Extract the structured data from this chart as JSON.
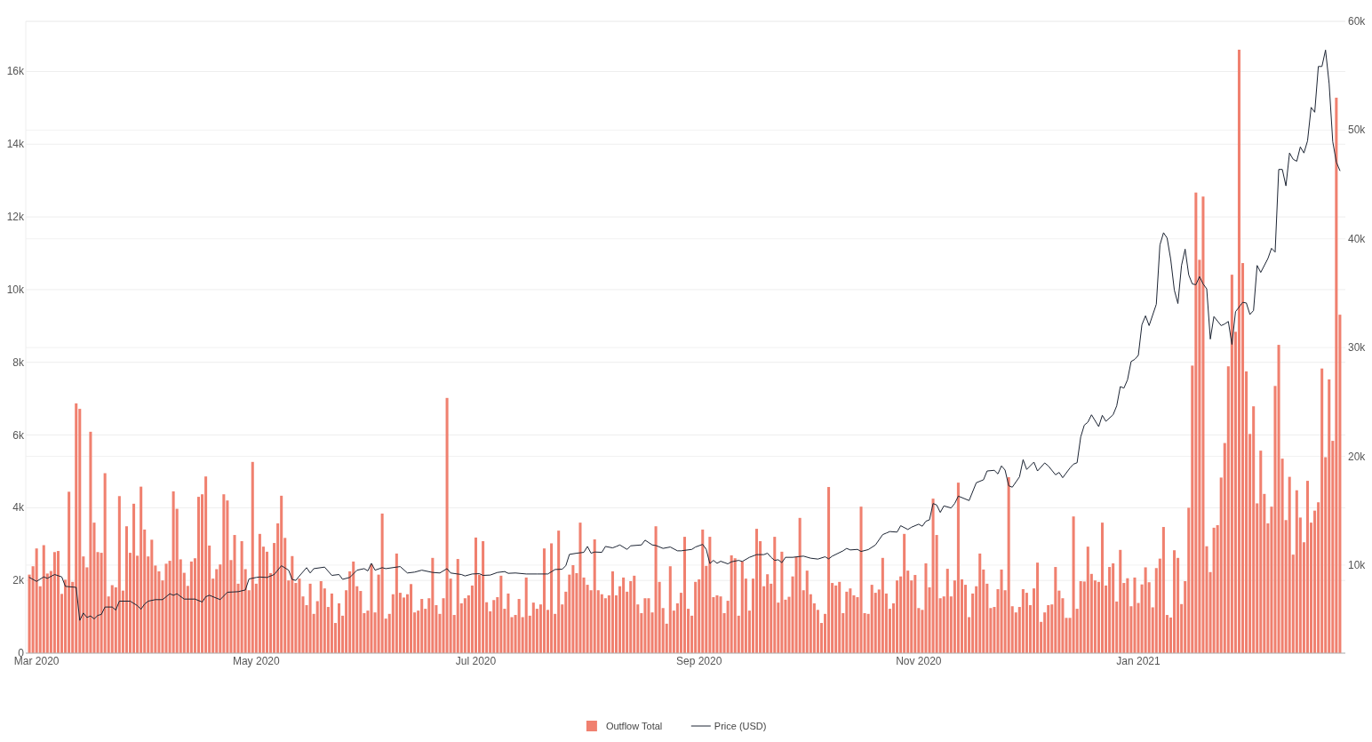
{
  "chart_data": {
    "type": "bar",
    "xlim": [
      "2020-02-27",
      "2021-02-27T12:00"
    ],
    "xticks": [
      {
        "value": "2020-03-01",
        "label": "Mar 2020"
      },
      {
        "value": "2020-05-01",
        "label": "May 2020"
      },
      {
        "value": "2020-07-01",
        "label": "Jul 2020"
      },
      {
        "value": "2020-09-01",
        "label": "Sep 2020"
      },
      {
        "value": "2020-11-01",
        "label": "Nov 2020"
      },
      {
        "value": "2021-01-01",
        "label": "Jan 2021"
      }
    ],
    "ylim": [
      0,
      17380
    ],
    "yticks": [
      0,
      {
        "value": 2000,
        "label": "2k"
      },
      {
        "value": 4000,
        "label": "4k"
      },
      {
        "value": 6000,
        "label": "6k"
      },
      {
        "value": 8000,
        "label": "8k"
      },
      {
        "value": 10000,
        "label": "10k"
      },
      {
        "value": 12000,
        "label": "12k"
      },
      {
        "value": 14000,
        "label": "14k"
      },
      {
        "value": 16000,
        "label": "16k"
      }
    ],
    "y2lim": [
      1900,
      60000
    ],
    "y2ticks": [
      {
        "value": 10000,
        "label": "10k"
      },
      {
        "value": 20000,
        "label": "20k"
      },
      {
        "value": 30000,
        "label": "30k"
      },
      {
        "value": 40000,
        "label": "40k"
      },
      {
        "value": 50000,
        "label": "50k"
      },
      {
        "value": 60000,
        "label": "60k"
      }
    ],
    "grid": "y",
    "legend": "bottom",
    "x": [
      "2020-02-28",
      "2020-02-29",
      "2020-03-01",
      "2020-03-02",
      "2020-03-03",
      "2020-03-04",
      "2020-03-05",
      "2020-03-06",
      "2020-03-07",
      "2020-03-08",
      "2020-03-09",
      "2020-03-10",
      "2020-03-11",
      "2020-03-12",
      "2020-03-13",
      "2020-03-14",
      "2020-03-15",
      "2020-03-16",
      "2020-03-17",
      "2020-03-18",
      "2020-03-19",
      "2020-03-20",
      "2020-03-21",
      "2020-03-22",
      "2020-03-23",
      "2020-03-24",
      "2020-03-25",
      "2020-03-26",
      "2020-03-27",
      "2020-03-28",
      "2020-03-29",
      "2020-03-30",
      "2020-03-31",
      "2020-04-01",
      "2020-04-02",
      "2020-04-03",
      "2020-04-04",
      "2020-04-05",
      "2020-04-06",
      "2020-04-07",
      "2020-04-08",
      "2020-04-09",
      "2020-04-10",
      "2020-04-11",
      "2020-04-12",
      "2020-04-13",
      "2020-04-14",
      "2020-04-15",
      "2020-04-16",
      "2020-04-17",
      "2020-04-18",
      "2020-04-19",
      "2020-04-20",
      "2020-04-21",
      "2020-04-22",
      "2020-04-23",
      "2020-04-24",
      "2020-04-25",
      "2020-04-26",
      "2020-04-27",
      "2020-04-28",
      "2020-04-29",
      "2020-04-30",
      "2020-05-01",
      "2020-05-02",
      "2020-05-03",
      "2020-05-04",
      "2020-05-05",
      "2020-05-06",
      "2020-05-07",
      "2020-05-08",
      "2020-05-09",
      "2020-05-10",
      "2020-05-11",
      "2020-05-12",
      "2020-05-13",
      "2020-05-14",
      "2020-05-15",
      "2020-05-16",
      "2020-05-17",
      "2020-05-18",
      "2020-05-19",
      "2020-05-20",
      "2020-05-21",
      "2020-05-22",
      "2020-05-23",
      "2020-05-24",
      "2020-05-25",
      "2020-05-26",
      "2020-05-27",
      "2020-05-28",
      "2020-05-29",
      "2020-05-30",
      "2020-05-31",
      "2020-06-01",
      "2020-06-02",
      "2020-06-03",
      "2020-06-04",
      "2020-06-05",
      "2020-06-06",
      "2020-06-07",
      "2020-06-08",
      "2020-06-09",
      "2020-06-10",
      "2020-06-11",
      "2020-06-12",
      "2020-06-13",
      "2020-06-14",
      "2020-06-15",
      "2020-06-16",
      "2020-06-17",
      "2020-06-18",
      "2020-06-19",
      "2020-06-20",
      "2020-06-21",
      "2020-06-22",
      "2020-06-23",
      "2020-06-24",
      "2020-06-25",
      "2020-06-26",
      "2020-06-27",
      "2020-06-28",
      "2020-06-29",
      "2020-06-30",
      "2020-07-01",
      "2020-07-02",
      "2020-07-03",
      "2020-07-04",
      "2020-07-05",
      "2020-07-06",
      "2020-07-07",
      "2020-07-08",
      "2020-07-09",
      "2020-07-10",
      "2020-07-11",
      "2020-07-12",
      "2020-07-13",
      "2020-07-14",
      "2020-07-15",
      "2020-07-16",
      "2020-07-17",
      "2020-07-18",
      "2020-07-19",
      "2020-07-20",
      "2020-07-21",
      "2020-07-22",
      "2020-07-23",
      "2020-07-24",
      "2020-07-25",
      "2020-07-26",
      "2020-07-27",
      "2020-07-28",
      "2020-07-29",
      "2020-07-30",
      "2020-07-31",
      "2020-08-01",
      "2020-08-02",
      "2020-08-03",
      "2020-08-04",
      "2020-08-05",
      "2020-08-06",
      "2020-08-07",
      "2020-08-08",
      "2020-08-09",
      "2020-08-10",
      "2020-08-11",
      "2020-08-12",
      "2020-08-13",
      "2020-08-14",
      "2020-08-15",
      "2020-08-16",
      "2020-08-17",
      "2020-08-18",
      "2020-08-19",
      "2020-08-20",
      "2020-08-21",
      "2020-08-22",
      "2020-08-23",
      "2020-08-24",
      "2020-08-25",
      "2020-08-26",
      "2020-08-27",
      "2020-08-28",
      "2020-08-29",
      "2020-08-30",
      "2020-08-31",
      "2020-09-01",
      "2020-09-02",
      "2020-09-03",
      "2020-09-04",
      "2020-09-05",
      "2020-09-06",
      "2020-09-07",
      "2020-09-08",
      "2020-09-09",
      "2020-09-10",
      "2020-09-11",
      "2020-09-12",
      "2020-09-13",
      "2020-09-14",
      "2020-09-15",
      "2020-09-16",
      "2020-09-17",
      "2020-09-18",
      "2020-09-19",
      "2020-09-20",
      "2020-09-21",
      "2020-09-22",
      "2020-09-23",
      "2020-09-24",
      "2020-09-25",
      "2020-09-26",
      "2020-09-27",
      "2020-09-28",
      "2020-09-29",
      "2020-09-30",
      "2020-10-01",
      "2020-10-02",
      "2020-10-03",
      "2020-10-04",
      "2020-10-05",
      "2020-10-06",
      "2020-10-07",
      "2020-10-08",
      "2020-10-09",
      "2020-10-10",
      "2020-10-11",
      "2020-10-12",
      "2020-10-13",
      "2020-10-14",
      "2020-10-15",
      "2020-10-16",
      "2020-10-17",
      "2020-10-18",
      "2020-10-19",
      "2020-10-20",
      "2020-10-21",
      "2020-10-22",
      "2020-10-23",
      "2020-10-24",
      "2020-10-25",
      "2020-10-26",
      "2020-10-27",
      "2020-10-28",
      "2020-10-29",
      "2020-10-30",
      "2020-10-31",
      "2020-11-01",
      "2020-11-02",
      "2020-11-03",
      "2020-11-04",
      "2020-11-05",
      "2020-11-06",
      "2020-11-07",
      "2020-11-08",
      "2020-11-09",
      "2020-11-10",
      "2020-11-11",
      "2020-11-12",
      "2020-11-13",
      "2020-11-14",
      "2020-11-15",
      "2020-11-16",
      "2020-11-17",
      "2020-11-18",
      "2020-11-19",
      "2020-11-20",
      "2020-11-21",
      "2020-11-22",
      "2020-11-23",
      "2020-11-24",
      "2020-11-25",
      "2020-11-26",
      "2020-11-27",
      "2020-11-28",
      "2020-11-29",
      "2020-11-30",
      "2020-12-01",
      "2020-12-02",
      "2020-12-03",
      "2020-12-04",
      "2020-12-05",
      "2020-12-06",
      "2020-12-07",
      "2020-12-08",
      "2020-12-09",
      "2020-12-10",
      "2020-12-11",
      "2020-12-12",
      "2020-12-13",
      "2020-12-14",
      "2020-12-15",
      "2020-12-16",
      "2020-12-17",
      "2020-12-18",
      "2020-12-19",
      "2020-12-20",
      "2020-12-21",
      "2020-12-22",
      "2020-12-23",
      "2020-12-24",
      "2020-12-25",
      "2020-12-26",
      "2020-12-27",
      "2020-12-28",
      "2020-12-29",
      "2020-12-30",
      "2020-12-31",
      "2021-01-01",
      "2021-01-02",
      "2021-01-03",
      "2021-01-04",
      "2021-01-05",
      "2021-01-06",
      "2021-01-07",
      "2021-01-08",
      "2021-01-09",
      "2021-01-10",
      "2021-01-11",
      "2021-01-12",
      "2021-01-13",
      "2021-01-14",
      "2021-01-15",
      "2021-01-16",
      "2021-01-17",
      "2021-01-18",
      "2021-01-19",
      "2021-01-20",
      "2021-01-21",
      "2021-01-22",
      "2021-01-23",
      "2021-01-24",
      "2021-01-25",
      "2021-01-26",
      "2021-01-27",
      "2021-01-28",
      "2021-01-29",
      "2021-01-30",
      "2021-01-31",
      "2021-02-01",
      "2021-02-02",
      "2021-02-03",
      "2021-02-04",
      "2021-02-05",
      "2021-02-06",
      "2021-02-07",
      "2021-02-08",
      "2021-02-09",
      "2021-02-10",
      "2021-02-11",
      "2021-02-12",
      "2021-02-13",
      "2021-02-14",
      "2021-02-15",
      "2021-02-16",
      "2021-02-17",
      "2021-02-18",
      "2021-02-19",
      "2021-02-20",
      "2021-02-21",
      "2021-02-22",
      "2021-02-23",
      "2021-02-24",
      "2021-02-25",
      "2021-02-26"
    ],
    "series": [
      {
        "name": "Outflow Total",
        "color": "#f0806f",
        "values": [
          2160,
          2390,
          2880,
          1840,
          2970,
          2190,
          2260,
          2780,
          2810,
          1630,
          2020,
          4440,
          1960,
          6870,
          6720,
          2660,
          2360,
          6090,
          3590,
          2780,
          2760,
          4950,
          1560,
          1870,
          1810,
          4320,
          1720,
          3490,
          2760,
          4110,
          2680,
          4580,
          3400,
          2660,
          3120,
          2410,
          2250,
          2000,
          2460,
          2540,
          4450,
          3970,
          2580,
          2210,
          1850,
          2520,
          2610,
          4300,
          4370,
          4860,
          2960,
          2050,
          2310,
          2440,
          4370,
          4200,
          2560,
          3250,
          1910,
          3080,
          2310,
          1730,
          5260,
          1910,
          3280,
          2930,
          2790,
          2200,
          3030,
          3570,
          4330,
          3170,
          2000,
          2670,
          1930,
          2050,
          1560,
          1320,
          1910,
          1080,
          1430,
          1980,
          1780,
          1270,
          1640,
          830,
          1370,
          1030,
          1730,
          2250,
          2520,
          1840,
          1710,
          1100,
          1170,
          2440,
          1120,
          2160,
          3840,
          950,
          1080,
          1620,
          2740,
          1660,
          1530,
          1620,
          1900,
          1120,
          1170,
          1490,
          1220,
          1510,
          2620,
          1320,
          1080,
          1510,
          7020,
          2050,
          1050,
          2590,
          1370,
          1510,
          1590,
          1860,
          3180,
          2160,
          3080,
          1400,
          1150,
          1460,
          1540,
          2130,
          1220,
          1640,
          990,
          1050,
          1490,
          990,
          2080,
          1030,
          1390,
          1220,
          1340,
          2880,
          1190,
          3020,
          1080,
          3370,
          1340,
          1690,
          2160,
          2420,
          2200,
          3590,
          2080,
          1880,
          1730,
          3130,
          1730,
          1620,
          1510,
          1590,
          2250,
          1590,
          1840,
          2080,
          1690,
          1980,
          2130,
          1340,
          1100,
          1510,
          1510,
          1120,
          3490,
          1960,
          1240,
          810,
          2390,
          1170,
          1370,
          1660,
          3200,
          1220,
          1030,
          1960,
          2030,
          3400,
          2400,
          3200,
          1540,
          1590,
          1560,
          1100,
          1440,
          2690,
          2610,
          1030,
          2520,
          2050,
          1170,
          2050,
          3420,
          3080,
          1840,
          2170,
          1910,
          3200,
          1390,
          2790,
          1470,
          1550,
          2110,
          2650,
          3720,
          1730,
          2270,
          1620,
          1370,
          1190,
          830,
          1080,
          4570,
          1930,
          1860,
          1960,
          1100,
          1690,
          1780,
          1590,
          1540,
          4030,
          1100,
          1080,
          1880,
          1660,
          1750,
          2620,
          1640,
          1220,
          1370,
          2000,
          2110,
          3280,
          2270,
          2000,
          2150,
          1240,
          1190,
          2470,
          1810,
          4250,
          3250,
          1510,
          1560,
          2320,
          1560,
          2000,
          4690,
          2030,
          1880,
          990,
          1640,
          1840,
          2740,
          2300,
          1910,
          1240,
          1270,
          1760,
          2300,
          1730,
          4840,
          1290,
          1120,
          1270,
          1760,
          1660,
          1320,
          1780,
          2490,
          860,
          1120,
          1320,
          1340,
          2370,
          1720,
          1510,
          970,
          970,
          3760,
          1220,
          1980,
          1970,
          2930,
          2180,
          2000,
          1960,
          3590,
          1860,
          2370,
          2470,
          1420,
          2840,
          1930,
          2060,
          1290,
          2080,
          1380,
          1890,
          2360,
          1950,
          1260,
          2340,
          2600,
          3470,
          1050,
          980,
          2830,
          2620,
          1350,
          1980,
          4000,
          7910,
          12670,
          10820,
          12560,
          2940,
          2230,
          3450,
          3520,
          4830,
          5780,
          7890,
          10410,
          8840,
          16600,
          10730,
          7750,
          6030,
          6790,
          4120,
          5570,
          4380,
          3570,
          4030,
          7350,
          8480,
          5350,
          3660,
          4850,
          2710,
          4480,
          3730,
          3050,
          4740,
          3590,
          3920,
          4150,
          7830,
          5390,
          7530,
          5840,
          15280,
          9310
        ]
      },
      {
        "name": "Price (USD)",
        "type": "line",
        "axis": "y2",
        "color": "#1c2433",
        "x": [
          "2020-02-28",
          "2020-03-01",
          "2020-03-03",
          "2020-03-04",
          "2020-03-06",
          "2020-03-08",
          "2020-03-09",
          "2020-03-12",
          "2020-03-13",
          "2020-03-14",
          "2020-03-15",
          "2020-03-16",
          "2020-03-17",
          "2020-03-18",
          "2020-03-19",
          "2020-03-20",
          "2020-03-22",
          "2020-03-23",
          "2020-03-24",
          "2020-03-27",
          "2020-03-29",
          "2020-03-30",
          "2020-03-31",
          "2020-04-01",
          "2020-04-03",
          "2020-04-05",
          "2020-04-07",
          "2020-04-08",
          "2020-04-09",
          "2020-04-11",
          "2020-04-14",
          "2020-04-16",
          "2020-04-17",
          "2020-04-18",
          "2020-04-21",
          "2020-04-23",
          "2020-04-26",
          "2020-04-28",
          "2020-04-29",
          "2020-05-01",
          "2020-05-02",
          "2020-05-04",
          "2020-05-06",
          "2020-05-08",
          "2020-05-10",
          "2020-05-11",
          "2020-05-12",
          "2020-05-13",
          "2020-05-15",
          "2020-05-16",
          "2020-05-17",
          "2020-05-20",
          "2020-05-22",
          "2020-05-24",
          "2020-05-25",
          "2020-05-27",
          "2020-05-29",
          "2020-05-31",
          "2020-06-01",
          "2020-06-02",
          "2020-06-03",
          "2020-06-05",
          "2020-06-06",
          "2020-06-10",
          "2020-06-12",
          "2020-06-14",
          "2020-06-16",
          "2020-06-19",
          "2020-06-21",
          "2020-06-23",
          "2020-06-24",
          "2020-06-27",
          "2020-06-28",
          "2020-06-30",
          "2020-07-02",
          "2020-07-03",
          "2020-07-05",
          "2020-07-07",
          "2020-07-09",
          "2020-07-10",
          "2020-07-12",
          "2020-07-15",
          "2020-07-18",
          "2020-07-21",
          "2020-07-23",
          "2020-07-25",
          "2020-07-26",
          "2020-07-27",
          "2020-07-29",
          "2020-07-31",
          "2020-08-01",
          "2020-08-02",
          "2020-08-03",
          "2020-08-05",
          "2020-08-06",
          "2020-08-08",
          "2020-08-09",
          "2020-08-10",
          "2020-08-12",
          "2020-08-13",
          "2020-08-16",
          "2020-08-17",
          "2020-08-19",
          "2020-08-20",
          "2020-08-22",
          "2020-08-24",
          "2020-08-26",
          "2020-08-27",
          "2020-08-30",
          "2020-08-31",
          "2020-09-02",
          "2020-09-03",
          "2020-09-04",
          "2020-09-05",
          "2020-09-06",
          "2020-09-07",
          "2020-09-09",
          "2020-09-10",
          "2020-09-12",
          "2020-09-13",
          "2020-09-15",
          "2020-09-17",
          "2020-09-19",
          "2020-09-20",
          "2020-09-21",
          "2020-09-22",
          "2020-09-23",
          "2020-09-24",
          "2020-09-25",
          "2020-09-27",
          "2020-09-29",
          "2020-09-30",
          "2020-10-02",
          "2020-10-04",
          "2020-10-06",
          "2020-10-07",
          "2020-10-08",
          "2020-10-11",
          "2020-10-12",
          "2020-10-13",
          "2020-10-15",
          "2020-10-16",
          "2020-10-18",
          "2020-10-20",
          "2020-10-22",
          "2020-10-23",
          "2020-10-24",
          "2020-10-26",
          "2020-10-27",
          "2020-10-29",
          "2020-10-30",
          "2020-11-01",
          "2020-11-02",
          "2020-11-03",
          "2020-11-04",
          "2020-11-05",
          "2020-11-06",
          "2020-11-07",
          "2020-11-08",
          "2020-11-10",
          "2020-11-11",
          "2020-11-12",
          "2020-11-15",
          "2020-11-17",
          "2020-11-19",
          "2020-11-20",
          "2020-11-22",
          "2020-11-23",
          "2020-11-24",
          "2020-11-25",
          "2020-11-26",
          "2020-11-27",
          "2020-11-29",
          "2020-11-30",
          "2020-12-01",
          "2020-12-03",
          "2020-12-04",
          "2020-12-06",
          "2020-12-07",
          "2020-12-09",
          "2020-12-10",
          "2020-12-11",
          "2020-12-13",
          "2020-12-14",
          "2020-12-15",
          "2020-12-16",
          "2020-12-17",
          "2020-12-18",
          "2020-12-19",
          "2020-12-21",
          "2020-12-22",
          "2020-12-23",
          "2020-12-25",
          "2020-12-26",
          "2020-12-27",
          "2020-12-28",
          "2020-12-29",
          "2020-12-30",
          "2020-12-31",
          "2021-01-01",
          "2021-01-02",
          "2021-01-03",
          "2021-01-04",
          "2021-01-06",
          "2021-01-07",
          "2021-01-08",
          "2021-01-09",
          "2021-01-10",
          "2021-01-11",
          "2021-01-12",
          "2021-01-13",
          "2021-01-14",
          "2021-01-15",
          "2021-01-16",
          "2021-01-17",
          "2021-01-18",
          "2021-01-19",
          "2021-01-20",
          "2021-01-21",
          "2021-01-22",
          "2021-01-24",
          "2021-01-25",
          "2021-01-26",
          "2021-01-27",
          "2021-01-28",
          "2021-01-30",
          "2021-01-31",
          "2021-02-01",
          "2021-02-02",
          "2021-02-03",
          "2021-02-04",
          "2021-02-06",
          "2021-02-07",
          "2021-02-08",
          "2021-02-09",
          "2021-02-10",
          "2021-02-11",
          "2021-02-12",
          "2021-02-13",
          "2021-02-14",
          "2021-02-15",
          "2021-02-16",
          "2021-02-17",
          "2021-02-18",
          "2021-02-19",
          "2021-02-20",
          "2021-02-21",
          "2021-02-22",
          "2021-02-23",
          "2021-02-24",
          "2021-02-25",
          "2021-02-26"
        ],
        "values": [
          8860,
          8500,
          8910,
          8780,
          9130,
          8910,
          8040,
          7950,
          4910,
          5590,
          5180,
          5320,
          5050,
          5370,
          5460,
          6140,
          6140,
          5860,
          6680,
          6680,
          6270,
          5940,
          6410,
          6680,
          6820,
          6820,
          7360,
          7220,
          7360,
          6870,
          6870,
          6600,
          7090,
          7220,
          6820,
          7500,
          7550,
          7710,
          8720,
          8860,
          8900,
          8860,
          9130,
          9940,
          9530,
          8670,
          8590,
          9000,
          9760,
          9270,
          9670,
          9810,
          9050,
          9130,
          8690,
          8860,
          9530,
          9670,
          9460,
          10160,
          9530,
          9760,
          9670,
          9860,
          9270,
          9350,
          9530,
          9320,
          9270,
          9670,
          9270,
          9130,
          9000,
          9180,
          9210,
          9050,
          9080,
          9320,
          9400,
          9240,
          9270,
          9180,
          9180,
          9180,
          9590,
          9620,
          9940,
          10980,
          11090,
          11170,
          11710,
          11090,
          11200,
          11170,
          11710,
          11580,
          11710,
          11850,
          11440,
          11770,
          11850,
          12290,
          11850,
          11800,
          11530,
          11660,
          11310,
          11310,
          11440,
          11660,
          11900,
          11440,
          10140,
          10430,
          10160,
          10350,
          10110,
          10300,
          10430,
          10330,
          10710,
          10960,
          10960,
          11090,
          10710,
          10430,
          10490,
          10220,
          10710,
          10710,
          10790,
          10820,
          10630,
          10550,
          10760,
          10570,
          10820,
          11310,
          11530,
          11390,
          11440,
          11250,
          11420,
          11850,
          12800,
          12940,
          13080,
          13030,
          13620,
          13270,
          13480,
          13760,
          13570,
          14030,
          14160,
          15660,
          15520,
          14840,
          15440,
          15250,
          15660,
          16340,
          15930,
          17570,
          17840,
          18650,
          18710,
          18380,
          19120,
          18730,
          17290,
          17160,
          18110,
          19690,
          18790,
          19470,
          18650,
          19390,
          19120,
          18300,
          18520,
          18030,
          18920,
          19280,
          19410,
          21780,
          22870,
          23140,
          23820,
          22730,
          23770,
          23220,
          23820,
          24640,
          26410,
          26270,
          27040,
          28720,
          28910,
          29280,
          32100,
          32920,
          32020,
          33980,
          39430,
          40560,
          40070,
          38110,
          35290,
          34050,
          37550,
          39050,
          36690,
          35850,
          35780,
          36530,
          35850,
          35400,
          30780,
          32850,
          32020,
          32170,
          32400,
          30290,
          33300,
          34160,
          34100,
          33040,
          33410,
          37550,
          36910,
          38190,
          39130,
          38780,
          46380,
          46380,
          44870,
          47890,
          47320,
          47130,
          48450,
          47890,
          49010,
          52090,
          51640,
          55850,
          55850,
          57360,
          54270,
          48940,
          47050,
          46270
        ]
      }
    ]
  }
}
